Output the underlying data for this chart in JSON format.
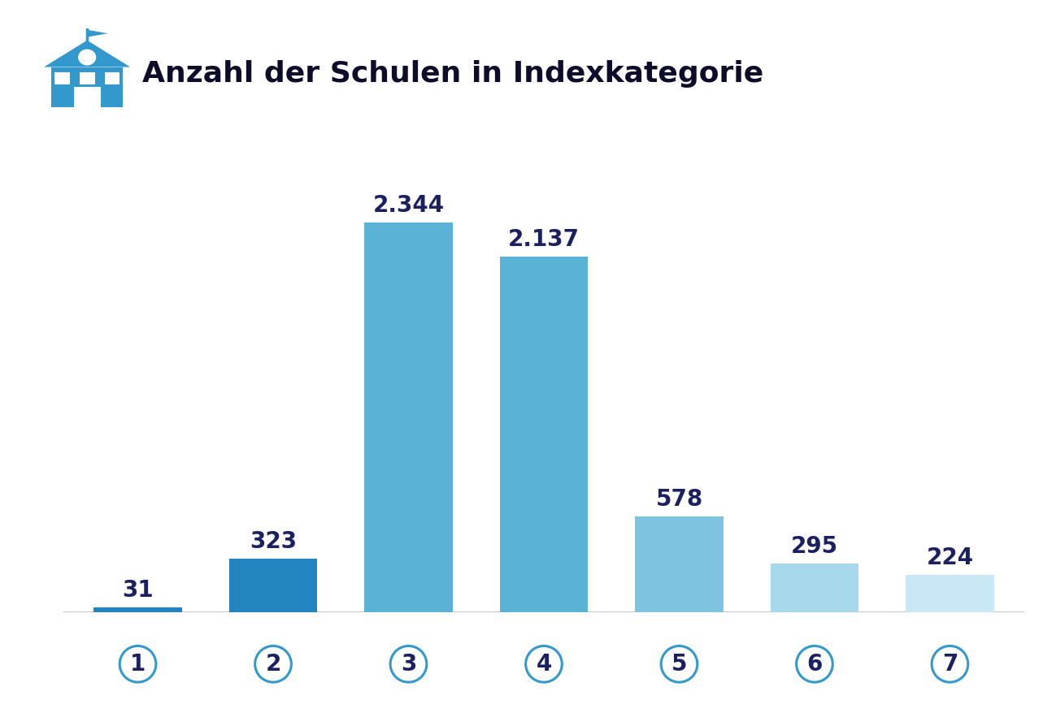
{
  "categories": [
    "1",
    "2",
    "3",
    "4",
    "5",
    "6",
    "7"
  ],
  "values": [
    31,
    323,
    2344,
    2137,
    578,
    295,
    224
  ],
  "value_labels": [
    "31",
    "323",
    "2.344",
    "2.137",
    "578",
    "295",
    "224"
  ],
  "bar_colors": [
    "#2484bf",
    "#2484bf",
    "#5ab2d6",
    "#5ab2d6",
    "#7ec4e0",
    "#a8d8ec",
    "#c8e8f5"
  ],
  "title": "Anzahl der Schulen in Indexkategorie",
  "background_color": "#ffffff",
  "title_color": "#0d0d2b",
  "label_color": "#1a2060",
  "tick_color": "#3399cc",
  "tick_label_color": "#1a2060",
  "value_fontsize": 20,
  "title_fontsize": 26,
  "tick_fontsize": 20,
  "ylim": [
    0,
    2750
  ],
  "icon_color": "#3399cc"
}
